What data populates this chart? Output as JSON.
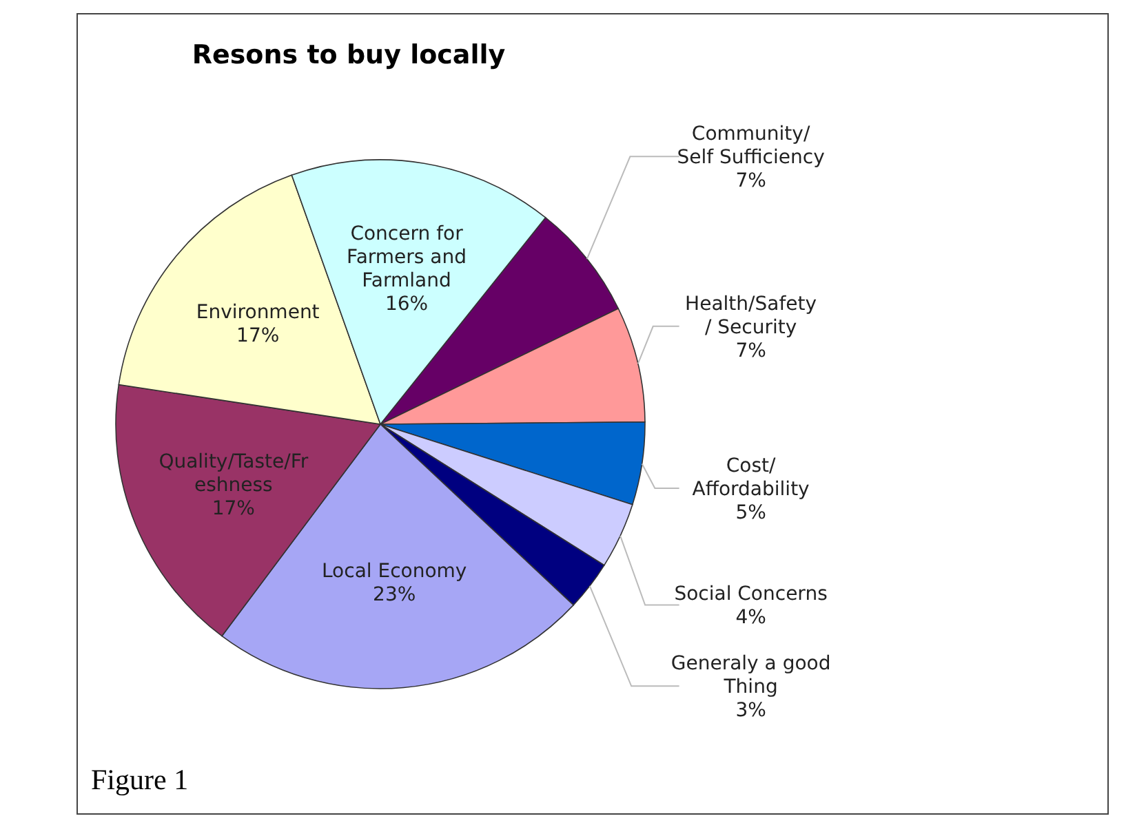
{
  "chart_data": {
    "type": "pie",
    "title": "Resons to buy locally",
    "categories": [
      "Community/\nSelf Sufficiency",
      "Health/Safety\n/ Security",
      "Cost/\nAffordability",
      "Social Concerns",
      "Generaly a good\nThing",
      "Local Economy",
      "Quality/Taste/Fr\neshness",
      "Environment",
      "Concern for\nFarmers and\nFarmland"
    ],
    "values": [
      7,
      7,
      5,
      4,
      3,
      23,
      17,
      17,
      16
    ],
    "value_labels": [
      "7%",
      "7%",
      "5%",
      "4%",
      "3%",
      "23%",
      "17%",
      "17%",
      "16%"
    ],
    "colors": [
      "#660066",
      "#ff9999",
      "#0066cc",
      "#ccccff",
      "#000080",
      "#a6a6f5",
      "#993366",
      "#ffffcc",
      "#ccffff"
    ],
    "annotations": [
      "Figure 1"
    ]
  }
}
